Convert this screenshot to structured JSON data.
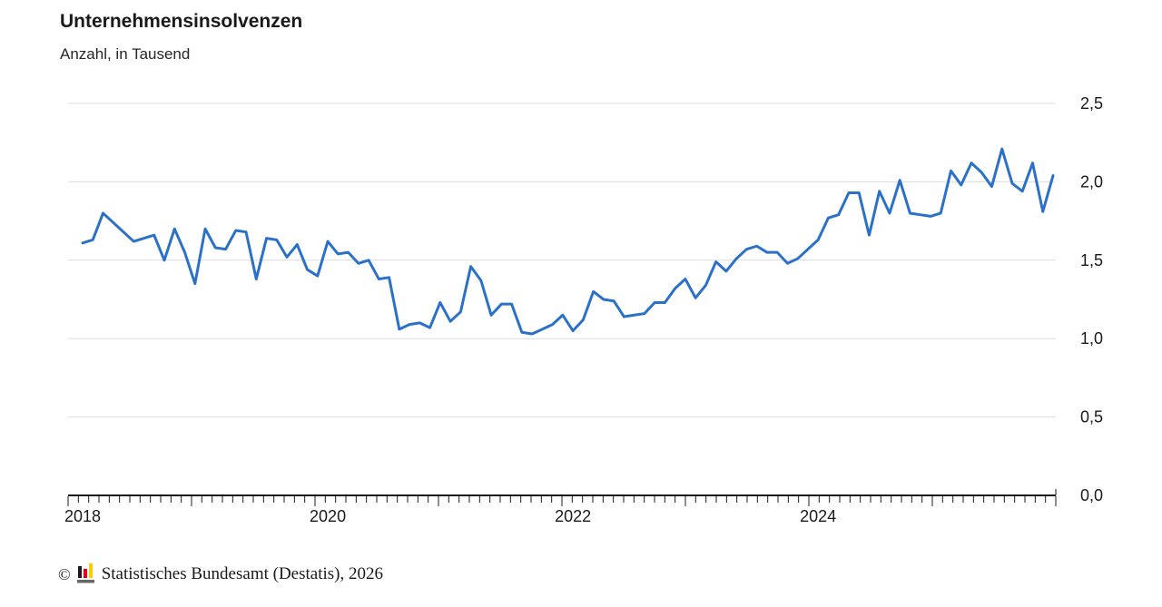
{
  "header": {
    "title": "Unternehmensinsolvenzen",
    "subtitle": "Anzahl, in Tausend"
  },
  "footer": {
    "copyright_symbol": "©",
    "source_text": "Statistisches Bundesamt (Destatis), 2026",
    "logo": {
      "icon": "destatis-bar-chart-logo",
      "bar_colors": [
        "#1a1a1a",
        "#e2001a",
        "#ffcc00"
      ],
      "base_color": "#666666"
    }
  },
  "chart_data": {
    "type": "line",
    "title": "Unternehmensinsolvenzen",
    "ylabel_unit": "Anzahl, in Tausend",
    "frequency": "monthly",
    "x_start": "2018-01",
    "x_end": "2025-12",
    "grid": "horizontal",
    "legend": "none",
    "ylim": [
      0,
      2.5
    ],
    "y_ticks": [
      0,
      0.5,
      1.0,
      1.5,
      2.0,
      2.5
    ],
    "y_tick_labels": [
      "0,0",
      "0,5",
      "1,0",
      "1,5",
      "2,0",
      "2,5"
    ],
    "x_year_labels": [
      {
        "label": "2018",
        "month_index": 0
      },
      {
        "label": "2020",
        "month_index": 24
      },
      {
        "label": "2022",
        "month_index": 48
      },
      {
        "label": "2024",
        "month_index": 72
      }
    ],
    "axis_color": "#1a1a1a",
    "gridline_color": "#dcdcdc",
    "label_color": "#1a1a1a",
    "series": [
      {
        "name": "Unternehmensinsolvenzen",
        "color": "#2b71c8",
        "values": [
          1.61,
          1.63,
          1.8,
          1.74,
          1.68,
          1.62,
          1.64,
          1.66,
          1.5,
          1.7,
          1.55,
          1.35,
          1.7,
          1.58,
          1.57,
          1.69,
          1.68,
          1.38,
          1.64,
          1.63,
          1.52,
          1.6,
          1.44,
          1.4,
          1.62,
          1.54,
          1.55,
          1.48,
          1.5,
          1.38,
          1.39,
          1.06,
          1.09,
          1.1,
          1.07,
          1.23,
          1.11,
          1.17,
          1.46,
          1.37,
          1.15,
          1.22,
          1.22,
          1.04,
          1.03,
          1.06,
          1.09,
          1.15,
          1.05,
          1.12,
          1.3,
          1.25,
          1.24,
          1.14,
          1.15,
          1.16,
          1.23,
          1.23,
          1.32,
          1.38,
          1.26,
          1.34,
          1.49,
          1.43,
          1.51,
          1.57,
          1.59,
          1.55,
          1.55,
          1.48,
          1.51,
          1.57,
          1.63,
          1.77,
          1.79,
          1.93,
          1.93,
          1.66,
          1.94,
          1.8,
          2.01,
          1.8,
          1.79,
          1.78,
          1.8,
          2.07,
          1.98,
          2.12,
          2.06,
          1.97,
          2.21,
          1.99,
          1.94,
          2.12,
          1.81,
          2.04
        ]
      }
    ]
  }
}
